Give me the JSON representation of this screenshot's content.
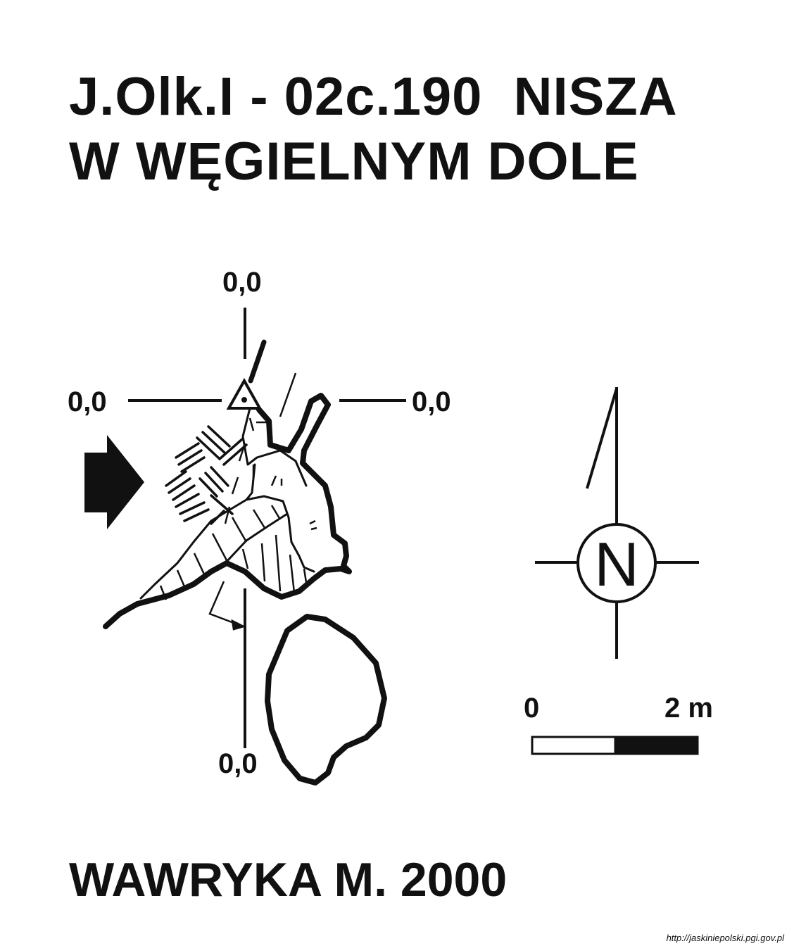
{
  "title": {
    "line1": "J.Olk.I - 02c.190  NISZA",
    "line2": "W WĘGIELNYM DOLE"
  },
  "section_markers": {
    "top": "0,0",
    "left": "0,0",
    "right": "0,0",
    "bottom": "0,0"
  },
  "north_arrow": {
    "letter": "N"
  },
  "scale_bar": {
    "start_label": "0",
    "end_label": "2 m",
    "segments": [
      "white",
      "black"
    ]
  },
  "author": "WAWRYKA M. 2000",
  "source": "http://jaskiniepolski.pgi.gov.pl",
  "colors": {
    "ink": "#111111",
    "background": "#ffffff"
  }
}
